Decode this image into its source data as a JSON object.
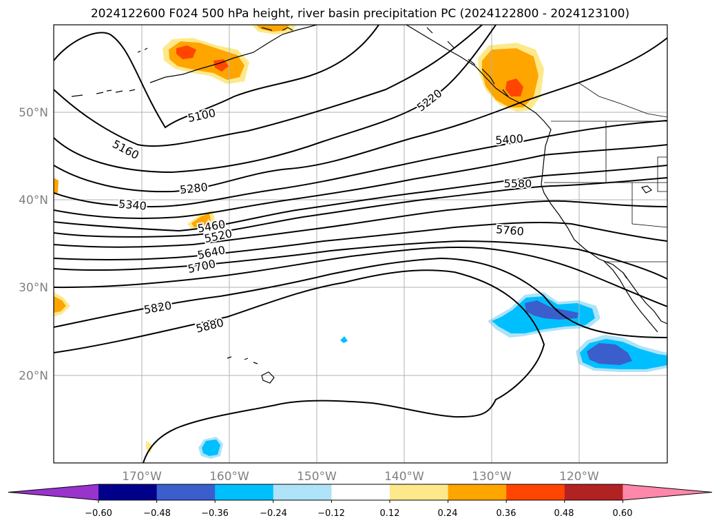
{
  "title": "2024122600 F024 500 hPa height, river basin precipitation PC (2024122800 - 2024123100)",
  "map": {
    "lon_labels": [
      "170°W",
      "160°W",
      "150°W",
      "140°W",
      "130°W",
      "120°W"
    ],
    "lat_labels": [
      "50°N",
      "40°N",
      "30°N",
      "20°N"
    ],
    "gridlines": true,
    "contour_color": "#000000",
    "contour_labels": [
      "5100",
      "5160",
      "5220",
      "5280",
      "5340",
      "5400",
      "5460",
      "5520",
      "5580",
      "5640",
      "5700",
      "5760",
      "5820",
      "5880"
    ]
  },
  "colorbar": {
    "ticks": [
      "−0.60",
      "−0.48",
      "−0.36",
      "−0.24",
      "−0.12",
      "0.12",
      "0.24",
      "0.36",
      "0.48",
      "0.60"
    ],
    "colors": [
      "#9933cc",
      "#00008b",
      "#3a5fcd",
      "#00bfff",
      "#aee3f8",
      "#ffffff",
      "#fde98b",
      "#ffa500",
      "#ff4500",
      "#b22222",
      "#ff88aa"
    ],
    "extend": "both"
  },
  "shading_colors": {
    "pos_light": "#fde98b",
    "pos_mid": "#ffa500",
    "pos_strong": "#ff4500",
    "neg_light": "#aee3f8",
    "neg_mid": "#00bfff",
    "neg_strong": "#3a5fcd"
  }
}
